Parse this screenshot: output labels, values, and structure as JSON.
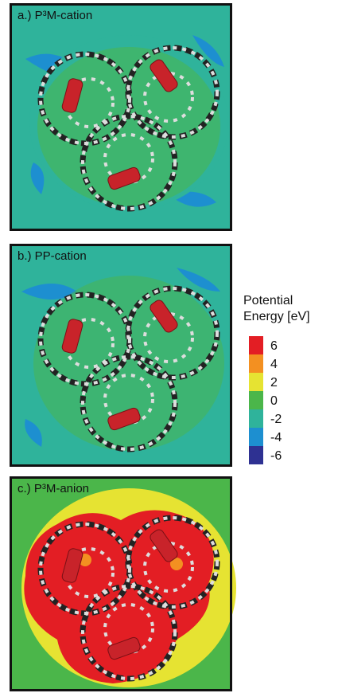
{
  "panels": [
    {
      "label": "a.) P³M-cation"
    },
    {
      "label": "b.) PP-cation"
    },
    {
      "label": "c.) P³M-anion"
    }
  ],
  "legend": {
    "title_lines": [
      "Potential",
      "Energy [eV]"
    ],
    "entries": [
      {
        "value": 6,
        "color": "#e31e24"
      },
      {
        "value": 4,
        "color": "#f39021"
      },
      {
        "value": 2,
        "color": "#e6e332"
      },
      {
        "value": 0,
        "color": "#4bb64a"
      },
      {
        "value": -2,
        "color": "#2fb39b"
      },
      {
        "value": -4,
        "color": "#1d8fd0"
      },
      {
        "value": -6,
        "color": "#2e3192"
      }
    ]
  }
}
